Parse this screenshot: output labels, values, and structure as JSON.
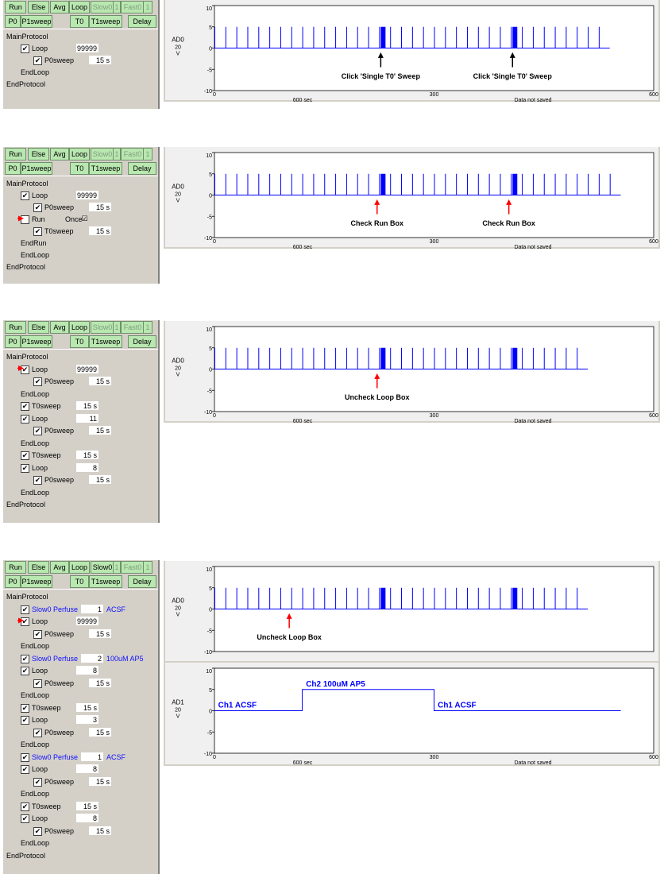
{
  "toolbar": {
    "row1": [
      "Run",
      "Else",
      "Avg",
      "Loop",
      "Slow0",
      "1",
      "Fast0",
      "1"
    ],
    "row2": [
      "P0",
      "P1sweep",
      "T0",
      "T1sweep",
      "Delay"
    ]
  },
  "panels": [
    {
      "rows": [
        {
          "label": "MainProtocol",
          "indent": 0,
          "checkbox": false
        },
        {
          "label": "Loop",
          "indent": 1,
          "checkbox": true,
          "checked": true,
          "value": "99999"
        },
        {
          "label": "P0sweep",
          "indent": 2,
          "checkbox": true,
          "checked": true,
          "value": "15 s"
        },
        {
          "label": "EndLoop",
          "indent": 1,
          "checkbox": false
        },
        {
          "label": "EndProtocol",
          "indent": 0,
          "checkbox": false
        }
      ]
    },
    {
      "rows": [
        {
          "label": "MainProtocol",
          "indent": 0,
          "checkbox": false
        },
        {
          "label": "Loop",
          "indent": 1,
          "checkbox": true,
          "checked": true,
          "value": "99999"
        },
        {
          "label": "P0sweep",
          "indent": 2,
          "checkbox": true,
          "checked": true,
          "value": "15 s"
        },
        {
          "label": "Run",
          "indent": 1,
          "checkbox": true,
          "checked": false,
          "extra": "Once",
          "arrow": true
        },
        {
          "label": "T0sweep",
          "indent": 2,
          "checkbox": true,
          "checked": true,
          "value": "15 s"
        },
        {
          "label": "EndRun",
          "indent": 1,
          "checkbox": false
        },
        {
          "label": "EndLoop",
          "indent": 1,
          "checkbox": false
        },
        {
          "label": "EndProtocol",
          "indent": 0,
          "checkbox": false
        }
      ]
    },
    {
      "rows": [
        {
          "label": "MainProtocol",
          "indent": 0,
          "checkbox": false
        },
        {
          "label": "Loop",
          "indent": 1,
          "checkbox": true,
          "checked": true,
          "value": "99999",
          "arrow": true
        },
        {
          "label": "P0sweep",
          "indent": 2,
          "checkbox": true,
          "checked": true,
          "value": "15 s"
        },
        {
          "label": "EndLoop",
          "indent": 1,
          "checkbox": false
        },
        {
          "label": "T0sweep",
          "indent": 1,
          "checkbox": true,
          "checked": true,
          "value": "15 s"
        },
        {
          "label": "Loop",
          "indent": 1,
          "checkbox": true,
          "checked": true,
          "value": "11"
        },
        {
          "label": "P0sweep",
          "indent": 2,
          "checkbox": true,
          "checked": true,
          "value": "15 s"
        },
        {
          "label": "EndLoop",
          "indent": 1,
          "checkbox": false
        },
        {
          "label": "T0sweep",
          "indent": 1,
          "checkbox": true,
          "checked": true,
          "value": "15 s"
        },
        {
          "label": "Loop",
          "indent": 1,
          "checkbox": true,
          "checked": true,
          "value": "8"
        },
        {
          "label": "P0sweep",
          "indent": 2,
          "checkbox": true,
          "checked": true,
          "value": "15 s"
        },
        {
          "label": "EndLoop",
          "indent": 1,
          "checkbox": false
        },
        {
          "label": "EndProtocol",
          "indent": 0,
          "checkbox": false
        }
      ]
    },
    {
      "rows": [
        {
          "label": "MainProtocol",
          "indent": 0,
          "checkbox": false
        },
        {
          "label": "Slow0 Perfuse",
          "indent": 1,
          "checkbox": true,
          "checked": true,
          "value": "1",
          "extra": "ACSF",
          "blue": true
        },
        {
          "label": "Loop",
          "indent": 1,
          "checkbox": true,
          "checked": true,
          "value": "99999",
          "arrow": true
        },
        {
          "label": "P0sweep",
          "indent": 2,
          "checkbox": true,
          "checked": true,
          "value": "15 s"
        },
        {
          "label": "EndLoop",
          "indent": 1,
          "checkbox": false
        },
        {
          "label": "Slow0 Perfuse",
          "indent": 1,
          "checkbox": true,
          "checked": true,
          "value": "2",
          "extra": "100uM AP5",
          "blue": true
        },
        {
          "label": "Loop",
          "indent": 1,
          "checkbox": true,
          "checked": true,
          "value": "8"
        },
        {
          "label": "P0sweep",
          "indent": 2,
          "checkbox": true,
          "checked": true,
          "value": "15 s"
        },
        {
          "label": "EndLoop",
          "indent": 1,
          "checkbox": false
        },
        {
          "label": "T0sweep",
          "indent": 1,
          "checkbox": true,
          "checked": true,
          "value": "15 s"
        },
        {
          "label": "Loop",
          "indent": 1,
          "checkbox": true,
          "checked": true,
          "value": "3"
        },
        {
          "label": "P0sweep",
          "indent": 2,
          "checkbox": true,
          "checked": true,
          "value": "15 s"
        },
        {
          "label": "EndLoop",
          "indent": 1,
          "checkbox": false
        },
        {
          "label": "Slow0 Perfuse",
          "indent": 1,
          "checkbox": true,
          "checked": true,
          "value": "1",
          "extra": "ACSF",
          "blue": true
        },
        {
          "label": "Loop",
          "indent": 1,
          "checkbox": true,
          "checked": true,
          "value": "8"
        },
        {
          "label": "P0sweep",
          "indent": 2,
          "checkbox": true,
          "checked": true,
          "value": "15 s"
        },
        {
          "label": "EndLoop",
          "indent": 1,
          "checkbox": false
        },
        {
          "label": "T0sweep",
          "indent": 1,
          "checkbox": true,
          "checked": true,
          "value": "15 s"
        },
        {
          "label": "Loop",
          "indent": 1,
          "checkbox": true,
          "checked": true,
          "value": "8"
        },
        {
          "label": "P0sweep",
          "indent": 2,
          "checkbox": true,
          "checked": true,
          "value": "15 s"
        },
        {
          "label": "EndLoop",
          "indent": 1,
          "checkbox": false
        },
        {
          "label": "EndProtocol",
          "indent": 0,
          "checkbox": false
        }
      ]
    }
  ],
  "chart_data": [
    {
      "type": "line",
      "channel": "AD0",
      "scale": "20",
      "unit": "V",
      "ylim": [
        -10,
        10
      ],
      "yticks": [
        "10",
        "5",
        "0",
        "-5",
        "-10"
      ],
      "xlim": [
        0,
        600
      ],
      "xticks": [
        "0",
        "300",
        "600"
      ],
      "footer_left": "600 sec",
      "footer_right": "Data not saved",
      "pulse_interval_s": 15,
      "pulse_amplitude": 5,
      "first_pulse_s": 0,
      "last_pulse_s": 525,
      "t0_sweeps_s": [
        225,
        405
      ],
      "annotations": [
        {
          "text": "Click 'Single T0' Sweep",
          "x": 225
        },
        {
          "text": "Click 'Single T0' Sweep",
          "x": 405
        }
      ],
      "arrow_color": "#000000"
    },
    {
      "type": "line",
      "channel": "AD0",
      "scale": "20",
      "unit": "V",
      "ylim": [
        -10,
        10
      ],
      "yticks": [
        "10",
        "5",
        "0",
        "-5",
        "-10"
      ],
      "xlim": [
        0,
        600
      ],
      "xticks": [
        "0",
        "300",
        "600"
      ],
      "footer_left": "600 sec",
      "footer_right": "Data not saved",
      "pulse_interval_s": 15,
      "pulse_amplitude": 5,
      "first_pulse_s": 0,
      "last_pulse_s": 540,
      "t0_sweeps_s": [
        225,
        405
      ],
      "annotations": [
        {
          "text": "Check Run Box",
          "x": 220
        },
        {
          "text": "Check Run Box",
          "x": 400
        }
      ],
      "arrow_color": "#ff0000"
    },
    {
      "type": "line",
      "channel": "AD0",
      "scale": "20",
      "unit": "V",
      "ylim": [
        -10,
        10
      ],
      "yticks": [
        "10",
        "5",
        "0",
        "-5",
        "-10"
      ],
      "xlim": [
        0,
        600
      ],
      "xticks": [
        "0",
        "300",
        "600"
      ],
      "footer_left": "600 sec",
      "footer_right": "Data not saved",
      "pulse_interval_s": 15,
      "pulse_amplitude": 5,
      "first_pulse_s": 0,
      "last_pulse_s": 495,
      "t0_sweeps_s": [
        225,
        405
      ],
      "annotations": [
        {
          "text": "Uncheck Loop Box",
          "x": 220
        }
      ],
      "arrow_color": "#ff0000"
    },
    {
      "type": "line",
      "channel": "AD0",
      "scale": "20",
      "unit": "V",
      "ylim": [
        -10,
        10
      ],
      "yticks": [
        "10",
        "5",
        "0",
        "-5",
        "-10"
      ],
      "xlim": [
        0,
        600
      ],
      "xticks": [],
      "pulse_interval_s": 15,
      "pulse_amplitude": 5,
      "first_pulse_s": 0,
      "last_pulse_s": 495,
      "t0_sweeps_s": [
        225,
        405
      ],
      "annotations": [
        {
          "text": "Uncheck Loop Box",
          "x": 100
        }
      ],
      "arrow_color": "#ff0000"
    },
    {
      "type": "line",
      "channel": "AD1",
      "scale": "20",
      "unit": "V",
      "ylim": [
        -10,
        10
      ],
      "yticks": [
        "10",
        "5",
        "0",
        "-5",
        "-10"
      ],
      "xlim": [
        0,
        600
      ],
      "xticks": [
        "0",
        "300",
        "600"
      ],
      "footer_left": "600 sec",
      "footer_right": "Data not saved",
      "steps": {
        "x": [
          0,
          120,
          120,
          300,
          300,
          555
        ],
        "y": [
          0,
          0,
          5,
          5,
          0,
          0
        ]
      },
      "labels": [
        {
          "text": "Ch1 ACSF",
          "x": 5,
          "y": 0
        },
        {
          "text": "Ch2 100uM AP5",
          "x": 125,
          "y": 5
        },
        {
          "text": "Ch1 ACSF",
          "x": 305,
          "y": 0
        }
      ]
    }
  ]
}
